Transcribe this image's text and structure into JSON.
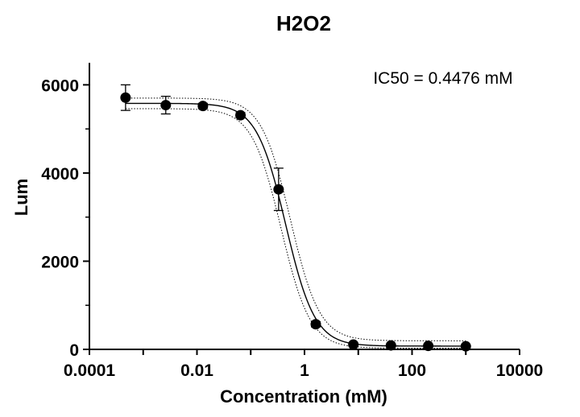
{
  "chart_data": {
    "type": "scatter",
    "title": "H2O2",
    "xlabel": "Concentration (mM)",
    "ylabel": "Lum",
    "x_scale": "log",
    "xlim": [
      0.0001,
      10000
    ],
    "ylim": [
      0,
      6500
    ],
    "x_ticks": [
      0.0001,
      0.01,
      1,
      100,
      10000
    ],
    "x_tick_labels": [
      "0.0001",
      "0.01",
      "1",
      "100",
      "10000"
    ],
    "y_ticks": [
      0,
      2000,
      4000,
      6000
    ],
    "y_tick_labels": [
      "0",
      "2000",
      "4000",
      "6000"
    ],
    "annotation": "IC50 = 0.4476 mM",
    "grid": false,
    "points": [
      {
        "x": 0.00047,
        "y": 5710,
        "err": 290
      },
      {
        "x": 0.00263,
        "y": 5540,
        "err": 200
      },
      {
        "x": 0.0129,
        "y": 5520,
        "err": 60
      },
      {
        "x": 0.0645,
        "y": 5310,
        "err": 60
      },
      {
        "x": 0.33,
        "y": 3630,
        "err": 480
      },
      {
        "x": 1.62,
        "y": 570,
        "err": 60
      },
      {
        "x": 8.1,
        "y": 110,
        "err": 30
      },
      {
        "x": 40.5,
        "y": 90,
        "err": 20
      },
      {
        "x": 200,
        "y": 80,
        "err": 20
      },
      {
        "x": 1000,
        "y": 70,
        "err": 20
      }
    ],
    "fit": {
      "top": 5580,
      "bottom": 75,
      "ic50": 0.4476,
      "hill": 1.6
    },
    "ci_band": {
      "offset": 120
    }
  }
}
